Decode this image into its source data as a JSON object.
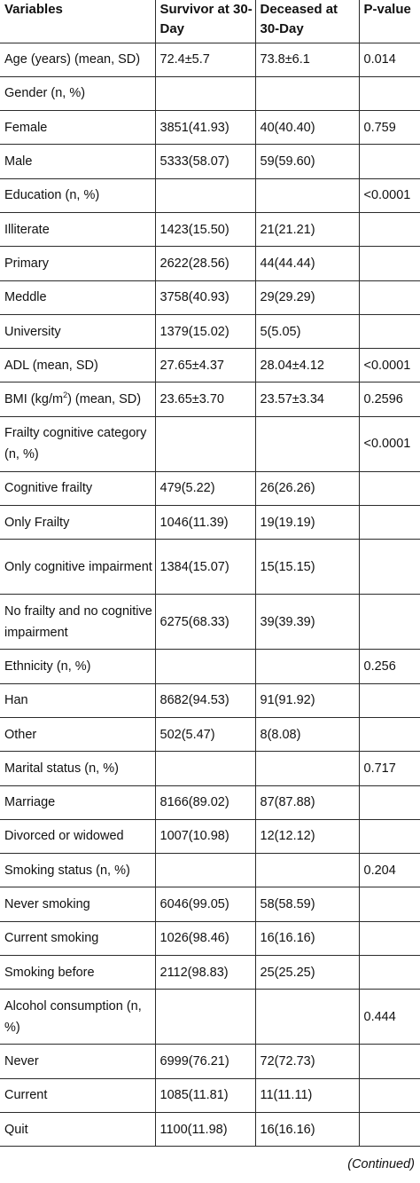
{
  "headers": {
    "variables": "Variables",
    "survivor": "Survivor at 30-Day",
    "deceased": "Deceased at 30-Day",
    "pvalue": "P-value"
  },
  "rows": [
    {
      "label": "Age (years) (mean, SD)",
      "survivor": "72.4±5.7",
      "deceased": "73.8±6.1",
      "p": "0.014"
    },
    {
      "label": "Gender (n, %)",
      "survivor": "",
      "deceased": "",
      "p": ""
    },
    {
      "label": "Female",
      "survivor": "3851(41.93)",
      "deceased": "40(40.40)",
      "p": "0.759"
    },
    {
      "label": "Male",
      "survivor": "5333(58.07)",
      "deceased": "59(59.60)",
      "p": ""
    },
    {
      "label": "Education (n, %)",
      "survivor": "",
      "deceased": "",
      "p": "<0.0001"
    },
    {
      "label": "Illiterate",
      "survivor": "1423(15.50)",
      "deceased": "21(21.21)",
      "p": ""
    },
    {
      "label": "Primary",
      "survivor": "2622(28.56)",
      "deceased": "44(44.44)",
      "p": ""
    },
    {
      "label": "Meddle",
      "survivor": "3758(40.93)",
      "deceased": "29(29.29)",
      "p": ""
    },
    {
      "label": "University",
      "survivor": "1379(15.02)",
      "deceased": "5(5.05)",
      "p": ""
    },
    {
      "label": "ADL (mean, SD)",
      "survivor": "27.65±4.37",
      "deceased": "28.04±4.12",
      "p": "<0.0001"
    },
    {
      "label": "BMI (kg/m2) (mean, SD)",
      "survivor": "23.65±3.70",
      "deceased": "23.57±3.34",
      "p": "0.2596"
    },
    {
      "label": "Frailty cognitive category (n, %)",
      "survivor": "",
      "deceased": "",
      "p": "<0.0001"
    },
    {
      "label": "Cognitive frailty",
      "survivor": "479(5.22)",
      "deceased": "26(26.26)",
      "p": ""
    },
    {
      "label": "Only Frailty",
      "survivor": "1046(11.39)",
      "deceased": "19(19.19)",
      "p": ""
    },
    {
      "label": "Only cognitive impairment",
      "survivor": "1384(15.07)",
      "deceased": "15(15.15)",
      "p": ""
    },
    {
      "label": "No frailty and no cognitive impairment",
      "survivor": "6275(68.33)",
      "deceased": "39(39.39)",
      "p": ""
    },
    {
      "label": "Ethnicity (n, %)",
      "survivor": "",
      "deceased": "",
      "p": "0.256"
    },
    {
      "label": "Han",
      "survivor": "8682(94.53)",
      "deceased": "91(91.92)",
      "p": ""
    },
    {
      "label": "Other",
      "survivor": "502(5.47)",
      "deceased": "8(8.08)",
      "p": ""
    },
    {
      "label": "Marital status (n, %)",
      "survivor": "",
      "deceased": "",
      "p": "0.717"
    },
    {
      "label": "Marriage",
      "survivor": "8166(89.02)",
      "deceased": "87(87.88)",
      "p": ""
    },
    {
      "label": "Divorced or widowed",
      "survivor": "1007(10.98)",
      "deceased": "12(12.12)",
      "p": ""
    },
    {
      "label": "Smoking status (n, %)",
      "survivor": "",
      "deceased": "",
      "p": "0.204"
    },
    {
      "label": "Never smoking",
      "survivor": "6046(99.05)",
      "deceased": "58(58.59)",
      "p": ""
    },
    {
      "label": "Current smoking",
      "survivor": "1026(98.46)",
      "deceased": "16(16.16)",
      "p": ""
    },
    {
      "label": "Smoking before",
      "survivor": "2112(98.83)",
      "deceased": "25(25.25)",
      "p": ""
    },
    {
      "label": "Alcohol consumption (n, %)",
      "survivor": "",
      "deceased": "",
      "p": "0.444"
    },
    {
      "label": "Never",
      "survivor": "6999(76.21)",
      "deceased": "72(72.73)",
      "p": ""
    },
    {
      "label": "Current",
      "survivor": "1085(11.81)",
      "deceased": "11(11.11)",
      "p": ""
    },
    {
      "label": "Quit",
      "survivor": "1100(11.98)",
      "deceased": "16(16.16)",
      "p": ""
    }
  ],
  "footer": "(Continued)"
}
